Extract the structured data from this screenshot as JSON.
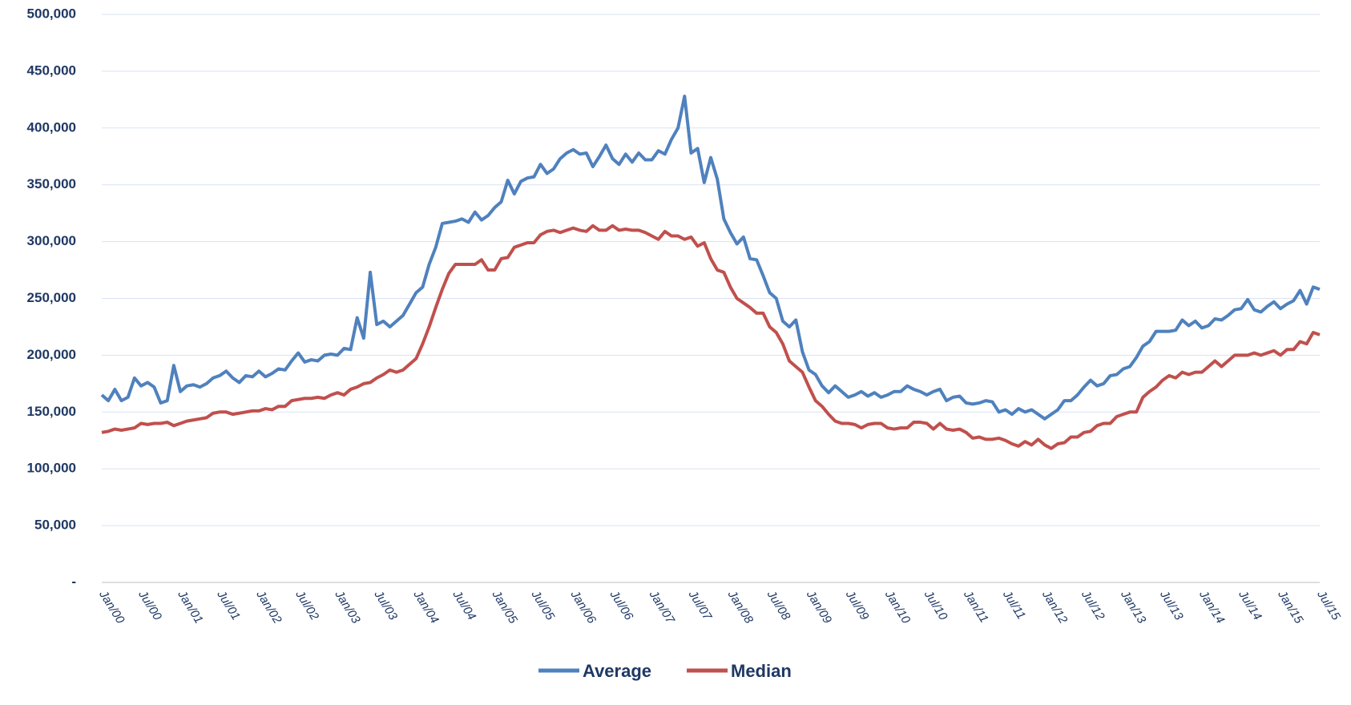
{
  "chart_data": {
    "type": "line",
    "categories": [
      "Jan/00",
      null,
      null,
      null,
      null,
      null,
      "Jul/00",
      null,
      null,
      null,
      null,
      null,
      "Jan/01",
      null,
      null,
      null,
      null,
      null,
      "Jul/01",
      null,
      null,
      null,
      null,
      null,
      "Jan/02",
      null,
      null,
      null,
      null,
      null,
      "Jul/02",
      null,
      null,
      null,
      null,
      null,
      "Jan/03",
      null,
      null,
      null,
      null,
      null,
      "Jul/03",
      null,
      null,
      null,
      null,
      null,
      "Jan/04",
      null,
      null,
      null,
      null,
      null,
      "Jul/04",
      null,
      null,
      null,
      null,
      null,
      "Jan/05",
      null,
      null,
      null,
      null,
      null,
      "Jul/05",
      null,
      null,
      null,
      null,
      null,
      "Jan/06",
      null,
      null,
      null,
      null,
      null,
      "Jul/06",
      null,
      null,
      null,
      null,
      null,
      "Jan/07",
      null,
      null,
      null,
      null,
      null,
      "Jul/07",
      null,
      null,
      null,
      null,
      null,
      "Jan/08",
      null,
      null,
      null,
      null,
      null,
      "Jul/08",
      null,
      null,
      null,
      null,
      null,
      "Jan/09",
      null,
      null,
      null,
      null,
      null,
      "Jul/09",
      null,
      null,
      null,
      null,
      null,
      "Jan/10",
      null,
      null,
      null,
      null,
      null,
      "Jul/10",
      null,
      null,
      null,
      null,
      null,
      "Jan/11",
      null,
      null,
      null,
      null,
      null,
      "Jul/11",
      null,
      null,
      null,
      null,
      null,
      "Jan/12",
      null,
      null,
      null,
      null,
      null,
      "Jul/12",
      null,
      null,
      null,
      null,
      null,
      "Jan/13",
      null,
      null,
      null,
      null,
      null,
      "Jul/13",
      null,
      null,
      null,
      null,
      null,
      "Jan/14",
      null,
      null,
      null,
      null,
      null,
      "Jul/14",
      null,
      null,
      null,
      null,
      null,
      "Jan/15",
      null,
      null,
      null,
      null,
      null,
      "Jul/15"
    ],
    "series": [
      {
        "name": "Average",
        "color": "#4f81bd",
        "values": [
          165000,
          160000,
          170000,
          160000,
          163000,
          180000,
          173000,
          176000,
          172000,
          158000,
          160000,
          191000,
          168000,
          173000,
          174000,
          172000,
          175000,
          180000,
          182000,
          186000,
          180000,
          176000,
          182000,
          181000,
          186000,
          181000,
          184000,
          188000,
          187000,
          195000,
          202000,
          194000,
          196000,
          195000,
          200000,
          201000,
          200000,
          206000,
          205000,
          233000,
          215000,
          273000,
          227000,
          230000,
          225000,
          230000,
          235000,
          245000,
          255000,
          260000,
          280000,
          295000,
          316000,
          317000,
          318000,
          320000,
          317000,
          326000,
          319000,
          323000,
          330000,
          335000,
          354000,
          342000,
          353000,
          356000,
          357000,
          368000,
          360000,
          364000,
          373000,
          378000,
          381000,
          377000,
          378000,
          366000,
          375000,
          385000,
          373000,
          368000,
          377000,
          370000,
          378000,
          372000,
          372000,
          380000,
          377000,
          390000,
          400000,
          428000,
          378000,
          382000,
          352000,
          374000,
          355000,
          320000,
          308000,
          298000,
          304000,
          285000,
          284000,
          270000,
          255000,
          250000,
          230000,
          225000,
          231000,
          203000,
          187000,
          183000,
          173000,
          167000,
          173000,
          168000,
          163000,
          165000,
          168000,
          164000,
          167000,
          163000,
          165000,
          168000,
          168000,
          173000,
          170000,
          168000,
          165000,
          168000,
          170000,
          160000,
          163000,
          164000,
          158000,
          157000,
          158000,
          160000,
          159000,
          150000,
          152000,
          148000,
          153000,
          150000,
          152000,
          148000,
          144000,
          148000,
          152000,
          160000,
          160000,
          165000,
          172000,
          178000,
          173000,
          175000,
          182000,
          183000,
          188000,
          190000,
          198000,
          208000,
          212000,
          221000,
          221000,
          221000,
          222000,
          231000,
          226000,
          230000,
          224000,
          226000,
          232000,
          231000,
          235000,
          240000,
          241000,
          249000,
          240000,
          238000,
          243000,
          247000,
          241000,
          245000,
          248000,
          257000,
          245000,
          260000,
          258000
        ]
      },
      {
        "name": "Median",
        "color": "#c0504d",
        "values": [
          132000,
          133000,
          135000,
          134000,
          135000,
          136000,
          140000,
          139000,
          140000,
          140000,
          141000,
          138000,
          140000,
          142000,
          143000,
          144000,
          145000,
          149000,
          150000,
          150000,
          148000,
          149000,
          150000,
          151000,
          151000,
          153000,
          152000,
          155000,
          155000,
          160000,
          161000,
          162000,
          162000,
          163000,
          162000,
          165000,
          167000,
          165000,
          170000,
          172000,
          175000,
          176000,
          180000,
          183000,
          187000,
          185000,
          187000,
          192000,
          197000,
          210000,
          225000,
          242000,
          258000,
          272000,
          280000,
          280000,
          280000,
          280000,
          284000,
          275000,
          275000,
          285000,
          286000,
          295000,
          297000,
          299000,
          299000,
          306000,
          309000,
          310000,
          308000,
          310000,
          312000,
          310000,
          309000,
          314000,
          310000,
          310000,
          314000,
          310000,
          311000,
          310000,
          310000,
          308000,
          305000,
          302000,
          309000,
          305000,
          305000,
          302000,
          304000,
          296000,
          299000,
          285000,
          275000,
          273000,
          260000,
          250000,
          246000,
          242000,
          237000,
          237000,
          225000,
          220000,
          210000,
          195000,
          190000,
          185000,
          172000,
          160000,
          155000,
          148000,
          142000,
          140000,
          140000,
          139000,
          136000,
          139000,
          140000,
          140000,
          136000,
          135000,
          136000,
          136000,
          141000,
          141000,
          140000,
          135000,
          140000,
          135000,
          134000,
          135000,
          132000,
          127000,
          128000,
          126000,
          126000,
          127000,
          125000,
          122000,
          120000,
          124000,
          121000,
          126000,
          121000,
          118000,
          122000,
          123000,
          128000,
          128000,
          132000,
          133000,
          138000,
          140000,
          140000,
          146000,
          148000,
          150000,
          150000,
          163000,
          168000,
          172000,
          178000,
          182000,
          180000,
          185000,
          183000,
          185000,
          185000,
          190000,
          195000,
          190000,
          195000,
          200000,
          200000,
          200000,
          202000,
          200000,
          202000,
          204000,
          200000,
          205000,
          205000,
          212000,
          210000,
          220000,
          218000
        ]
      }
    ],
    "ylim": [
      0,
      500000
    ],
    "yticks": [
      {
        "value": 0,
        "label": "-"
      },
      {
        "value": 50000,
        "label": "50,000"
      },
      {
        "value": 100000,
        "label": "100,000"
      },
      {
        "value": 150000,
        "label": "150,000"
      },
      {
        "value": 200000,
        "label": "200,000"
      },
      {
        "value": 250000,
        "label": "250,000"
      },
      {
        "value": 300000,
        "label": "300,000"
      },
      {
        "value": 350000,
        "label": "350,000"
      },
      {
        "value": 400000,
        "label": "400,000"
      },
      {
        "value": 450000,
        "label": "450,000"
      },
      {
        "value": 500000,
        "label": "500,000"
      }
    ],
    "grid": true,
    "legend": "bottom"
  }
}
